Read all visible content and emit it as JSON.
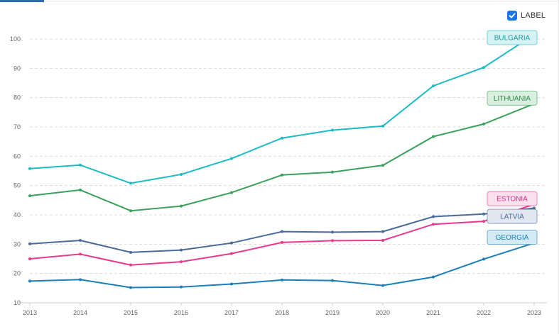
{
  "controls": {
    "label_toggle": {
      "text": "LABEL",
      "checked": true
    }
  },
  "chart_data": {
    "type": "line",
    "x": [
      2013,
      2014,
      2015,
      2016,
      2017,
      2018,
      2019,
      2020,
      2021,
      2022,
      2023
    ],
    "ylim": [
      10,
      100
    ],
    "yticks": [
      10,
      20,
      30,
      40,
      50,
      60,
      70,
      80,
      90,
      100
    ],
    "grid": true,
    "legend": "end-of-line labels",
    "series": [
      {
        "name": "BULGARIA",
        "color": "#1cbcc4",
        "tagBg": "#d6f2f3",
        "tagText": "#1a9aa2",
        "values": [
          55.8,
          57.0,
          50.8,
          53.8,
          59.2,
          66.2,
          68.9,
          70.3,
          84.0,
          90.3,
          101.5
        ]
      },
      {
        "name": "LITHUANIA",
        "color": "#3aa05b",
        "tagBg": "#d9efdf",
        "tagText": "#2e8a4c",
        "values": [
          46.5,
          48.5,
          41.4,
          43.0,
          47.6,
          53.6,
          54.6,
          56.9,
          66.7,
          71.0,
          77.9
        ]
      },
      {
        "name": "LATVIA",
        "color": "#4a6a9a",
        "tagBg": "#e1e6f1",
        "tagText": "#4a6a9a",
        "values": [
          30.1,
          31.3,
          27.2,
          28.0,
          30.4,
          34.3,
          34.1,
          34.3,
          39.4,
          40.3,
          42.3
        ]
      },
      {
        "name": "ESTONIA",
        "color": "#e8398a",
        "tagBg": "#fbe1ee",
        "tagText": "#d82f7e",
        "values": [
          25.0,
          26.6,
          22.9,
          24.0,
          26.8,
          30.6,
          31.2,
          31.3,
          36.8,
          37.8,
          43.6
        ]
      },
      {
        "name": "GEORGIA",
        "color": "#1a7fb8",
        "tagBg": "#d4ebf5",
        "tagText": "#1a7fb8",
        "values": [
          17.4,
          17.9,
          15.2,
          15.4,
          16.4,
          17.8,
          17.6,
          15.9,
          18.8,
          24.9,
          30.4
        ]
      }
    ]
  }
}
